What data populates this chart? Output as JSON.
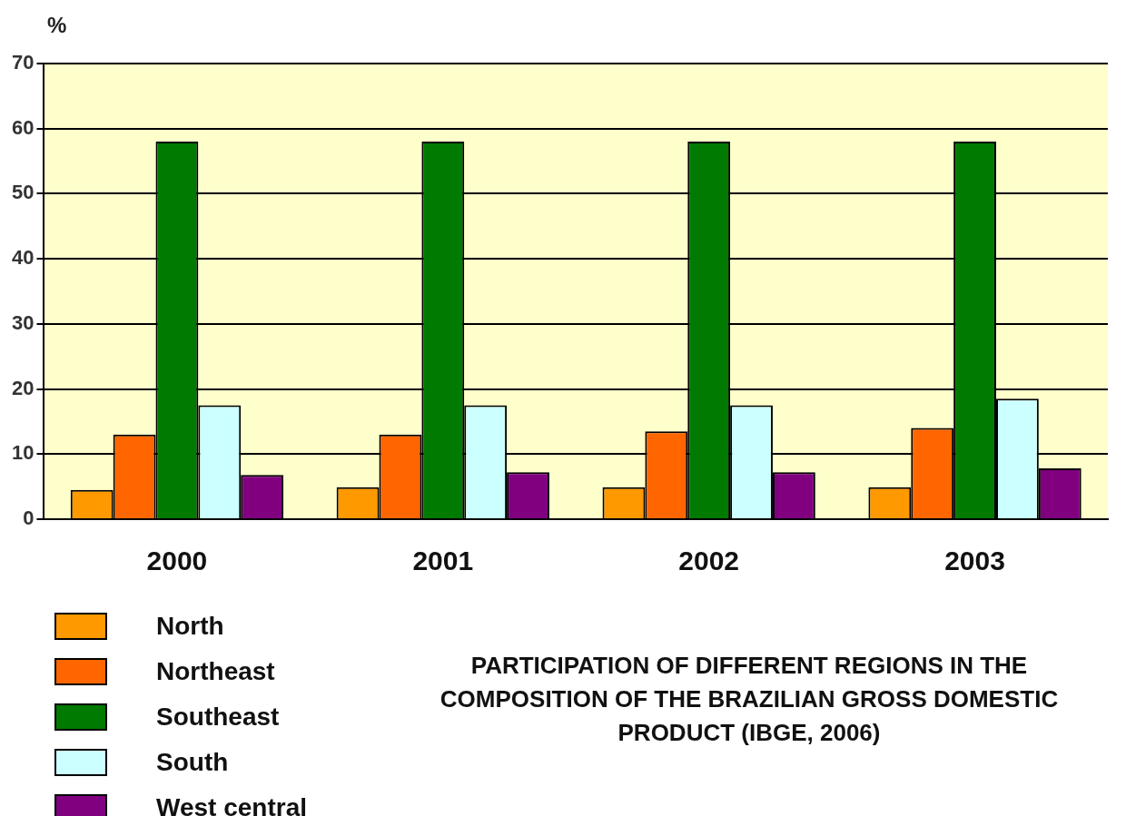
{
  "chart_data": {
    "type": "bar",
    "title": "PARTICIPATION OF DIFFERENT REGIONS IN THE COMPOSITION OF THE BRAZILIAN GROSS DOMESTIC PRODUCT (IBGE, 2006)",
    "ylabel": "%",
    "categories": [
      "2000",
      "2001",
      "2002",
      "2003"
    ],
    "series": [
      {
        "name": "North",
        "color": "#ff9900",
        "values": [
          4.5,
          4.9,
          4.9,
          4.9
        ]
      },
      {
        "name": "Northeast",
        "color": "#ff6600",
        "values": [
          13,
          13,
          13.5,
          14
        ]
      },
      {
        "name": "Southeast",
        "color": "#007a00",
        "values": [
          58,
          58,
          58,
          58
        ]
      },
      {
        "name": "South",
        "color": "#ccffff",
        "values": [
          17.5,
          17.5,
          17.5,
          18.5
        ]
      },
      {
        "name": "West central",
        "color": "#800080",
        "values": [
          6.8,
          7.2,
          7.2,
          7.8
        ]
      }
    ],
    "ylim": [
      0,
      70
    ],
    "yticks": [
      0,
      10,
      20,
      30,
      40,
      50,
      60,
      70
    ],
    "grid": "y",
    "legend": "bottom left"
  }
}
